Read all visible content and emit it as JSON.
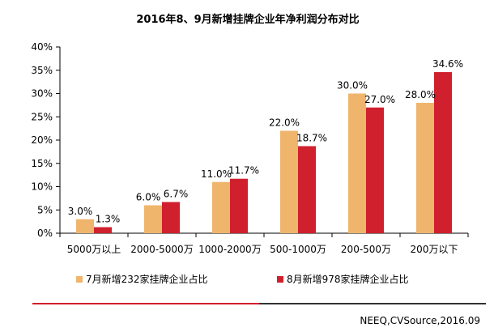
{
  "chart_data": {
    "type": "bar",
    "title": "2016年8、9月新增挂牌企业年净利润分布对比",
    "categories": [
      "5000万以上",
      "2000-5000万",
      "1000-2000万",
      "500-1000万",
      "200-500万",
      "200万以下"
    ],
    "series": [
      {
        "name": "7月新增232家挂牌企业占比",
        "values": [
          3.0,
          6.0,
          11.0,
          22.0,
          30.0,
          28.0
        ],
        "labels": [
          "3.0%",
          "6.0%",
          "11.0%",
          "22.0%",
          "30.0%",
          "28.0%"
        ],
        "color": "#EFB56C"
      },
      {
        "name": "8月新增978家挂牌企业占比",
        "values": [
          1.3,
          6.7,
          11.7,
          18.7,
          27.0,
          34.6
        ],
        "labels": [
          "1.3%",
          "6.7%",
          "11.7%",
          "18.7%",
          "27.0%",
          "34.6%"
        ],
        "color": "#D0202D"
      }
    ],
    "ylim": [
      0,
      40
    ],
    "yticks": [
      "0%",
      "5%",
      "10%",
      "15%",
      "20%",
      "25%",
      "30%",
      "35%",
      "40%"
    ],
    "xlabel": "",
    "ylabel": "",
    "grid": false,
    "legend_position": "bottom"
  },
  "footer": {
    "source": "NEEQ,CVSource,2016.09",
    "line_colors": [
      "#D0202D",
      "#333333"
    ]
  }
}
